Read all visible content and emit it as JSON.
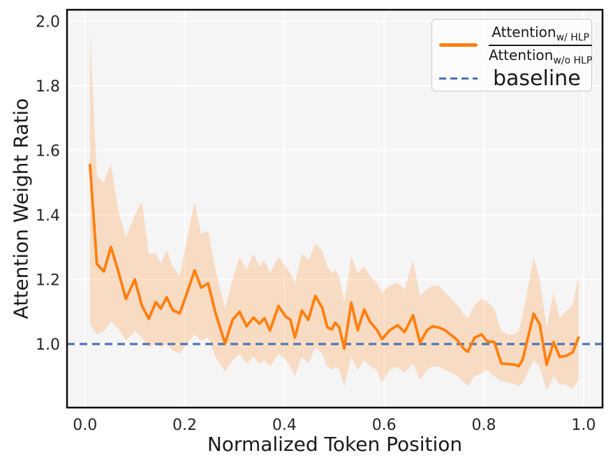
{
  "figure": {
    "xlabel": "Normalized Token Position",
    "ylabel": "Attention Weight Ratio"
  },
  "legend": {
    "num_base": "Attention",
    "num_sub": "w/ HLP",
    "den_base": "Attention",
    "den_sub": "w/o HLP",
    "baseline_label": "baseline"
  },
  "colors": {
    "line": "#ff7f0e",
    "band": "rgba(255,127,14,0.22)",
    "baseline": "#4c72b0",
    "plot_bg": "#f5f5f6",
    "grid": "#ffffff",
    "frame": "#0a0a0a",
    "text": "#262626"
  },
  "chart_data": {
    "type": "line",
    "title": "",
    "xlabel": "Normalized Token Position",
    "ylabel": "Attention Weight Ratio",
    "xlim": [
      -0.036,
      1.038
    ],
    "ylim": [
      0.803,
      2.036
    ],
    "xticks": [
      0.0,
      0.2,
      0.4,
      0.6,
      0.8,
      1.0
    ],
    "xtick_labels": [
      "0.0",
      "0.2",
      "0.4",
      "0.6",
      "0.8",
      "1.0"
    ],
    "yticks": [
      1.0,
      1.2,
      1.4,
      1.6,
      1.8,
      2.0
    ],
    "ytick_labels": [
      "1.0",
      "1.2",
      "1.4",
      "1.6",
      "1.8",
      "2.0"
    ],
    "grid": true,
    "legend_position": "upper right",
    "baseline": 1.0,
    "series_name": "Attention w/ HLP over Attention w/o HLP ratio (mean with uncertainty band)",
    "x": [
      0.01,
      0.024,
      0.038,
      0.052,
      0.066,
      0.082,
      0.1,
      0.114,
      0.128,
      0.142,
      0.152,
      0.164,
      0.176,
      0.19,
      0.205,
      0.22,
      0.233,
      0.247,
      0.262,
      0.281,
      0.296,
      0.31,
      0.324,
      0.338,
      0.35,
      0.36,
      0.371,
      0.388,
      0.403,
      0.412,
      0.421,
      0.435,
      0.448,
      0.462,
      0.476,
      0.486,
      0.495,
      0.502,
      0.51,
      0.52,
      0.534,
      0.547,
      0.56,
      0.572,
      0.585,
      0.596,
      0.611,
      0.627,
      0.641,
      0.658,
      0.672,
      0.686,
      0.697,
      0.71,
      0.722,
      0.735,
      0.747,
      0.76,
      0.768,
      0.781,
      0.795,
      0.807,
      0.821,
      0.835,
      0.849,
      0.862,
      0.87,
      0.878,
      0.9,
      0.912,
      0.926,
      0.94,
      0.952,
      0.964,
      0.978,
      0.99
    ],
    "mean": [
      1.555,
      1.248,
      1.225,
      1.301,
      1.23,
      1.14,
      1.2,
      1.12,
      1.078,
      1.13,
      1.11,
      1.145,
      1.105,
      1.095,
      1.16,
      1.228,
      1.175,
      1.188,
      1.095,
      1.002,
      1.075,
      1.1,
      1.055,
      1.082,
      1.063,
      1.08,
      1.042,
      1.118,
      1.084,
      1.076,
      1.02,
      1.104,
      1.075,
      1.149,
      1.112,
      1.052,
      1.045,
      1.066,
      1.052,
      0.986,
      1.128,
      1.043,
      1.107,
      1.068,
      1.045,
      1.015,
      1.043,
      1.058,
      1.037,
      1.089,
      1.004,
      1.043,
      1.055,
      1.051,
      1.043,
      1.027,
      1.012,
      0.985,
      0.976,
      1.019,
      1.03,
      1.008,
      1.006,
      0.94,
      0.938,
      0.936,
      0.931,
      0.952,
      1.094,
      1.061,
      0.936,
      1.006,
      0.96,
      0.963,
      0.974,
      1.02
    ],
    "band_upper": [
      1.96,
      1.52,
      1.5,
      1.56,
      1.42,
      1.33,
      1.4,
      1.44,
      1.28,
      1.28,
      1.25,
      1.29,
      1.24,
      1.21,
      1.33,
      1.44,
      1.34,
      1.35,
      1.23,
      1.11,
      1.2,
      1.27,
      1.23,
      1.28,
      1.24,
      1.26,
      1.22,
      1.27,
      1.24,
      1.22,
      1.19,
      1.28,
      1.26,
      1.31,
      1.29,
      1.24,
      1.22,
      1.23,
      1.21,
      1.13,
      1.27,
      1.22,
      1.24,
      1.21,
      1.19,
      1.16,
      1.18,
      1.19,
      1.17,
      1.26,
      1.15,
      1.17,
      1.18,
      1.18,
      1.16,
      1.14,
      1.12,
      1.09,
      1.08,
      1.12,
      1.14,
      1.13,
      1.11,
      1.04,
      1.03,
      1.03,
      1.04,
      1.09,
      1.27,
      1.2,
      1.05,
      1.16,
      1.08,
      1.1,
      1.12,
      1.21
    ],
    "band_lower": [
      1.06,
      1.03,
      1.04,
      1.07,
      1.05,
      1.01,
      1.04,
      1.02,
      0.99,
      1.0,
      0.99,
      1.0,
      0.98,
      0.97,
      1.0,
      1.03,
      1.01,
      1.02,
      0.96,
      0.915,
      0.95,
      0.97,
      0.94,
      0.96,
      0.94,
      0.95,
      0.93,
      0.97,
      0.95,
      0.93,
      0.9,
      0.96,
      0.94,
      0.99,
      0.97,
      0.93,
      0.92,
      0.93,
      0.92,
      0.87,
      0.96,
      0.92,
      0.95,
      0.93,
      0.92,
      0.88,
      0.92,
      0.93,
      0.91,
      0.94,
      0.89,
      0.92,
      0.93,
      0.93,
      0.92,
      0.91,
      0.9,
      0.88,
      0.87,
      0.9,
      0.91,
      0.92,
      0.9,
      0.885,
      0.88,
      0.875,
      0.87,
      0.88,
      0.95,
      0.93,
      0.855,
      0.9,
      0.875,
      0.875,
      0.86,
      0.89
    ]
  }
}
